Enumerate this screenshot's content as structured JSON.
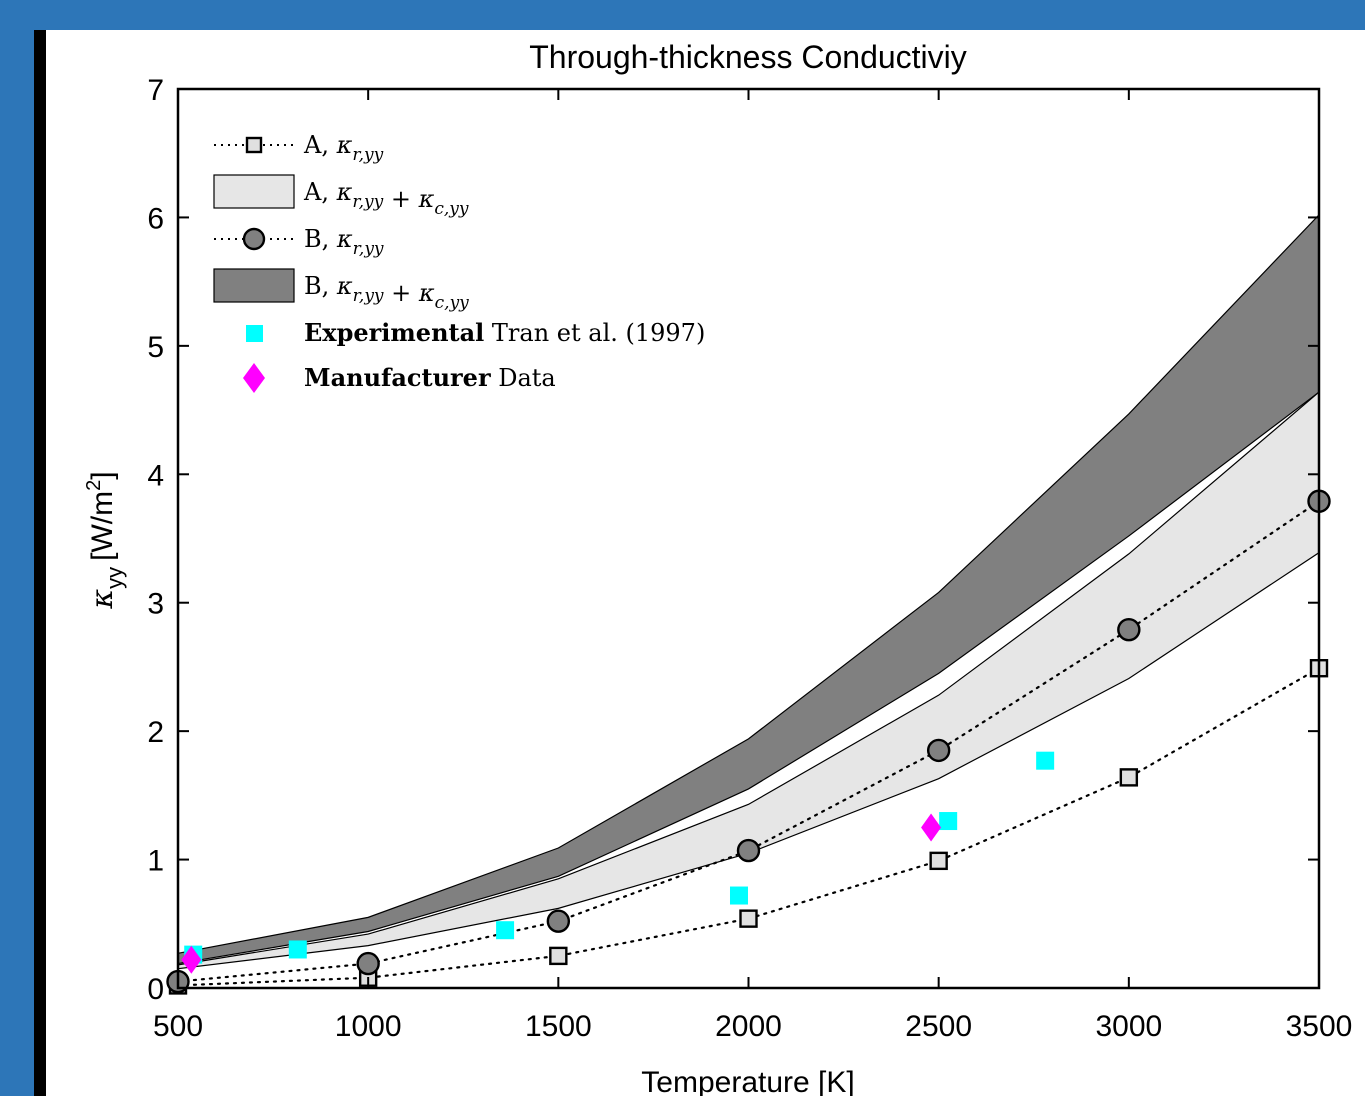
{
  "chart_data": {
    "type": "line",
    "title": "Through-thickness Conductiviy",
    "xlabel": "Temperature [K]",
    "ylabel_symbol": "κ",
    "ylabel_sub": "yy",
    "ylabel_unit": "[W/m",
    "ylabel_sup": "2",
    "ylabel_close": "]",
    "xlim": [
      500,
      3500
    ],
    "ylim": [
      0,
      7
    ],
    "xticks": [
      500,
      1000,
      1500,
      2000,
      2500,
      3000,
      3500
    ],
    "yticks": [
      0,
      1,
      2,
      3,
      4,
      5,
      6,
      7
    ],
    "grid": false,
    "legend_position": "top-left",
    "series": [
      {
        "id": "A_r",
        "legend": "A, κ_{r,yy}",
        "kind": "line-marker",
        "marker": "square",
        "x": [
          500,
          1000,
          1500,
          2000,
          2500,
          3000,
          3500
        ],
        "y": [
          0.02,
          0.08,
          0.25,
          0.54,
          0.99,
          1.64,
          2.49
        ]
      },
      {
        "id": "A_band",
        "legend": "A, κ_{r,yy} + κ_{c,yy}",
        "kind": "band",
        "x": [
          500,
          1000,
          1500,
          2000,
          2500,
          3000,
          3500
        ],
        "lower": [
          0.15,
          0.33,
          0.62,
          1.05,
          1.63,
          2.41,
          3.39
        ],
        "upper": [
          0.18,
          0.42,
          0.85,
          1.43,
          2.28,
          3.38,
          4.64
        ]
      },
      {
        "id": "B_r",
        "legend": "B, κ_{r,yy}",
        "kind": "line-marker",
        "marker": "circle",
        "x": [
          500,
          1000,
          1500,
          2000,
          2500,
          3000,
          3500
        ],
        "y": [
          0.05,
          0.19,
          0.52,
          1.07,
          1.85,
          2.79,
          3.79
        ]
      },
      {
        "id": "B_band",
        "legend": "B, κ_{r,yy} + κ_{c,yy}",
        "kind": "band",
        "x": [
          500,
          1000,
          1500,
          2000,
          2500,
          3000,
          3500
        ],
        "lower": [
          0.19,
          0.44,
          0.87,
          1.55,
          2.45,
          3.52,
          4.64
        ],
        "upper": [
          0.27,
          0.55,
          1.09,
          1.94,
          3.08,
          4.47,
          6.02
        ]
      },
      {
        "id": "experimental",
        "legend_bold": "Experimental",
        "legend_rest": "Tran et al. (1997)",
        "kind": "scatter",
        "marker": "square",
        "x": [
          540,
          815,
          1360,
          1975,
          2525,
          2780
        ],
        "y": [
          0.26,
          0.3,
          0.45,
          0.72,
          1.3,
          1.77
        ]
      },
      {
        "id": "manufacturer",
        "legend_bold": "Manufacturer",
        "legend_rest": "Data",
        "kind": "scatter",
        "marker": "diamond",
        "x": [
          535,
          2480
        ],
        "y": [
          0.22,
          1.25
        ]
      }
    ],
    "colors": {
      "band_a_fill": "#e6e6e6",
      "band_b_fill": "#808080",
      "marker_a_fill": "#e0e0e0",
      "marker_b_fill": "#808080",
      "experimental": "#00ffff",
      "manufacturer": "#ff00ff",
      "frame_border": "#2d76b8"
    }
  }
}
